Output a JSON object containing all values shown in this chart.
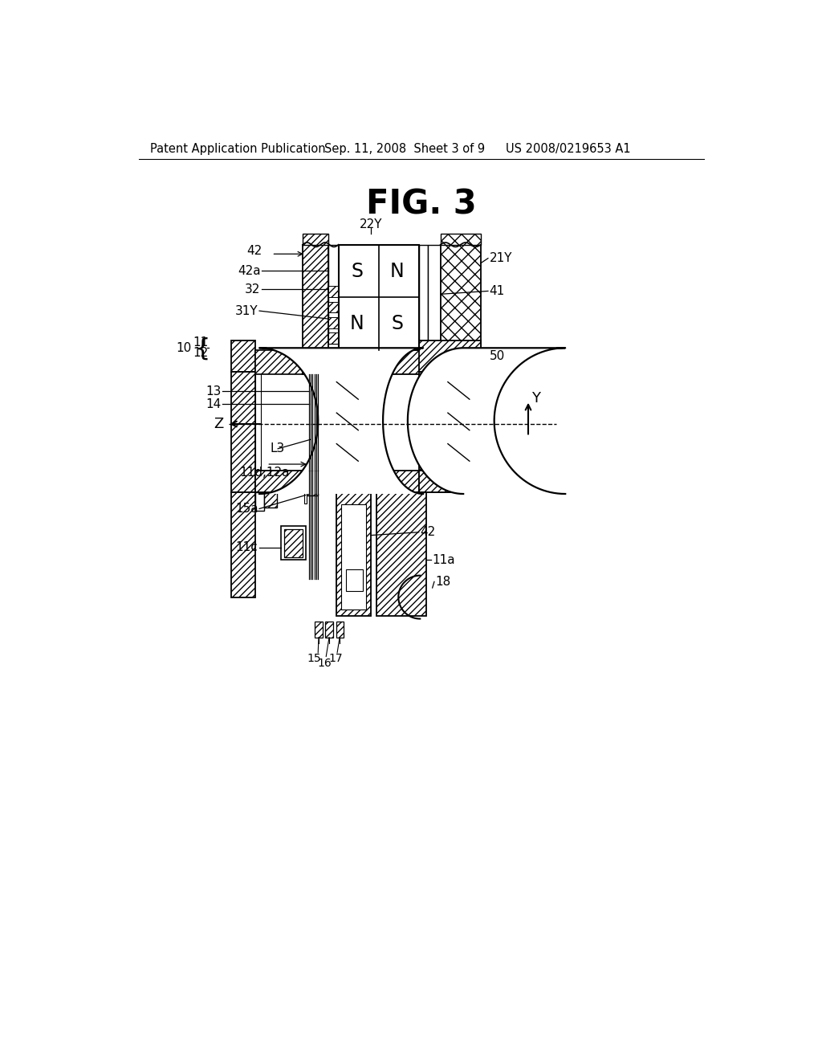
{
  "title": "FIG. 3",
  "header_left": "Patent Application Publication",
  "header_center": "Sep. 11, 2008  Sheet 3 of 9",
  "header_right": "US 2008/0219653 A1",
  "bg_color": "#ffffff",
  "fig_title_fontsize": 30,
  "header_fontsize": 10.5
}
